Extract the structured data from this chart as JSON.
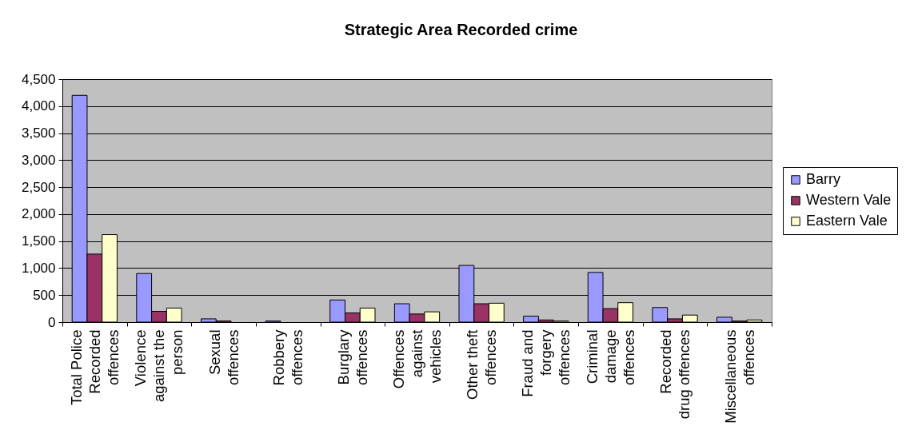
{
  "chart_data": {
    "type": "bar",
    "title": "Strategic Area Recorded crime",
    "categories": [
      "Total Police Recorded offences",
      "Violence against the person",
      "Sexual offences",
      "Robbery offences",
      "Burglary offences",
      "Offences against vehicles",
      "Other theft offences",
      "Fraud and forgery offences",
      "Criminal damage offences",
      "Recorded drug offences",
      "Miscellaneous offences"
    ],
    "series": [
      {
        "name": "Barry",
        "color": "#9999ff",
        "values": [
          4200,
          900,
          60,
          20,
          410,
          340,
          1050,
          110,
          920,
          270,
          90
        ]
      },
      {
        "name": "Western Vale",
        "color": "#993366",
        "values": [
          1260,
          200,
          20,
          null,
          170,
          150,
          340,
          40,
          250,
          60,
          20
        ]
      },
      {
        "name": "Eastern Vale",
        "color": "#ffffcc",
        "values": [
          1620,
          260,
          null,
          null,
          260,
          190,
          350,
          20,
          360,
          130,
          40
        ]
      }
    ],
    "ylim": [
      0,
      4500
    ],
    "yticks": [
      0,
      500,
      {
        "value": 1000,
        "label": "1,000"
      },
      {
        "value": 1500,
        "label": "1,500"
      },
      {
        "value": 2000,
        "label": "2,000"
      },
      {
        "value": 2500,
        "label": "2,500"
      },
      {
        "value": 3000,
        "label": "3,000"
      },
      {
        "value": 3500,
        "label": "3,500"
      },
      {
        "value": 4000,
        "label": "4,000"
      },
      {
        "value": 4500,
        "label": "4,500"
      }
    ],
    "grid": "y",
    "legend": "right"
  }
}
